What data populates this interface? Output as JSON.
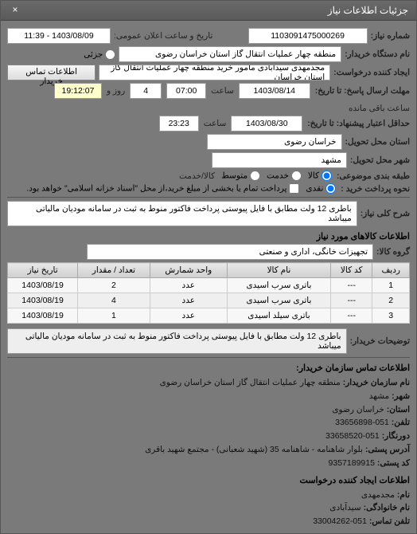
{
  "panel": {
    "title": "جزئیات اطلاعات نیاز",
    "close": "×"
  },
  "top": {
    "req_no_label": "شماره نیاز:",
    "req_no": "1103091475000269",
    "ann_label": "تاریخ و ساعت اعلان عمومی:",
    "ann_val": "1403/08/09 - 11:39",
    "org_label": "نام دستگاه خریدار:",
    "org_val": "منطقه چهار عملیات انتقال گاز   استان خراسان رضوی",
    "part_label": "جزئی",
    "creator_label": "ایجاد کننده درخواست:",
    "creator_val": "مجدمهدی سیدآبادی مامور خرید منطقه چهار عملیات انتقال گاز   استان خراسان",
    "contact_btn": "اطلاعات تماس خریدار"
  },
  "dead": {
    "reply_label": "مهلت ارسال پاسخ: تا تاریخ:",
    "reply_date": "1403/08/14",
    "time_lbl": "ساعت",
    "reply_time": "07:00",
    "days_lbl": "روز و",
    "days": "4",
    "remain_lbl": "ساعت باقی مانده",
    "remain": "19:12:07",
    "valid_label": "حداقل اعتبار پیشنهاد: تا تاریخ:",
    "valid_date": "1403/08/30",
    "valid_time": "23:23"
  },
  "loc": {
    "province_label": "استان محل تحویل:",
    "province": "خراسان رضوی",
    "city_label": "شهر محل تحویل:",
    "city": "مشهد"
  },
  "opts": {
    "pkg_label": "طبقه بندی موضوعی:",
    "r_all": "کالا",
    "r_few": "خدمت",
    "r_mid": "متوسط",
    "svc_label": "کالا/خدمت",
    "pay_label": "نحوه پرداخت خرید :",
    "r_cash": "نقدی",
    "pay_note": "پرداخت تمام یا بخشی از مبلغ خرید،از محل \"اسناد خزانه اسلامی\" خواهد بود."
  },
  "need": {
    "title_label": "شرح کلی نیاز:",
    "title_val": "باطری 12 ولت مطابق با فایل پیوستی پرداخت فاکتور منوط به ثبت در سامانه مودیان مالیاتی میباشد"
  },
  "goods": {
    "section": "اطلاعات کالاهای مورد نیاز",
    "group_label": "گروه کالا:",
    "group_val": "تجهیزات خانگی، اداری و صنعتی",
    "cols": [
      "ردیف",
      "کد کالا",
      "نام کالا",
      "واحد شمارش",
      "تعداد / مقدار",
      "تاریخ نیاز"
    ],
    "rows": [
      [
        "1",
        "---",
        "باتری سرب اسیدی",
        "عدد",
        "2",
        "1403/08/19"
      ],
      [
        "2",
        "---",
        "باتری سرب اسیدی",
        "عدد",
        "4",
        "1403/08/19"
      ],
      [
        "3",
        "---",
        "باتری سیلد اسیدی",
        "عدد",
        "1",
        "1403/08/19"
      ]
    ]
  },
  "buyer_desc": {
    "label": "توضیحات خریدار:",
    "val": "باطری 12 ولت مطابق با فایل پیوستی پرداخت فاکتور منوط به ثبت در سامانه مودیان مالیاتی میباشد"
  },
  "org": {
    "section": "اطلاعات تماس سازمان خریدار:",
    "name_k": "نام سازمان خریدار:",
    "name_v": "منطقه چهار عملیات انتقال گاز استان خراسان رضوی",
    "city_k": "شهر:",
    "city_v": "مشهد",
    "prov_k": "استان:",
    "prov_v": "خراسان رضوی",
    "tel_k": "تلفن:",
    "tel_v": "051-33656898",
    "fax_k": "دورنگار:",
    "fax_v": "051-33658520",
    "addr_k": "آدرس پستی:",
    "addr_v": "بلوار شاهنامه - شاهنامه 35 (شهید شعبانی) - مجتمع شهید باقری",
    "post_k": "کد پستی:",
    "post_v": "9357189915"
  },
  "person": {
    "section": "اطلاعات ایجاد کننده درخواست",
    "name_k": "نام:",
    "name_v": "مجدمهدی",
    "fam_k": "نام خانوادگی:",
    "fam_v": "سیدآبادی",
    "tel_k": "تلفن تماس:",
    "tel_v": "051-33004262"
  },
  "colors": {
    "field_bg": "#ffffff",
    "panel_bg": "#7a7a7a"
  }
}
